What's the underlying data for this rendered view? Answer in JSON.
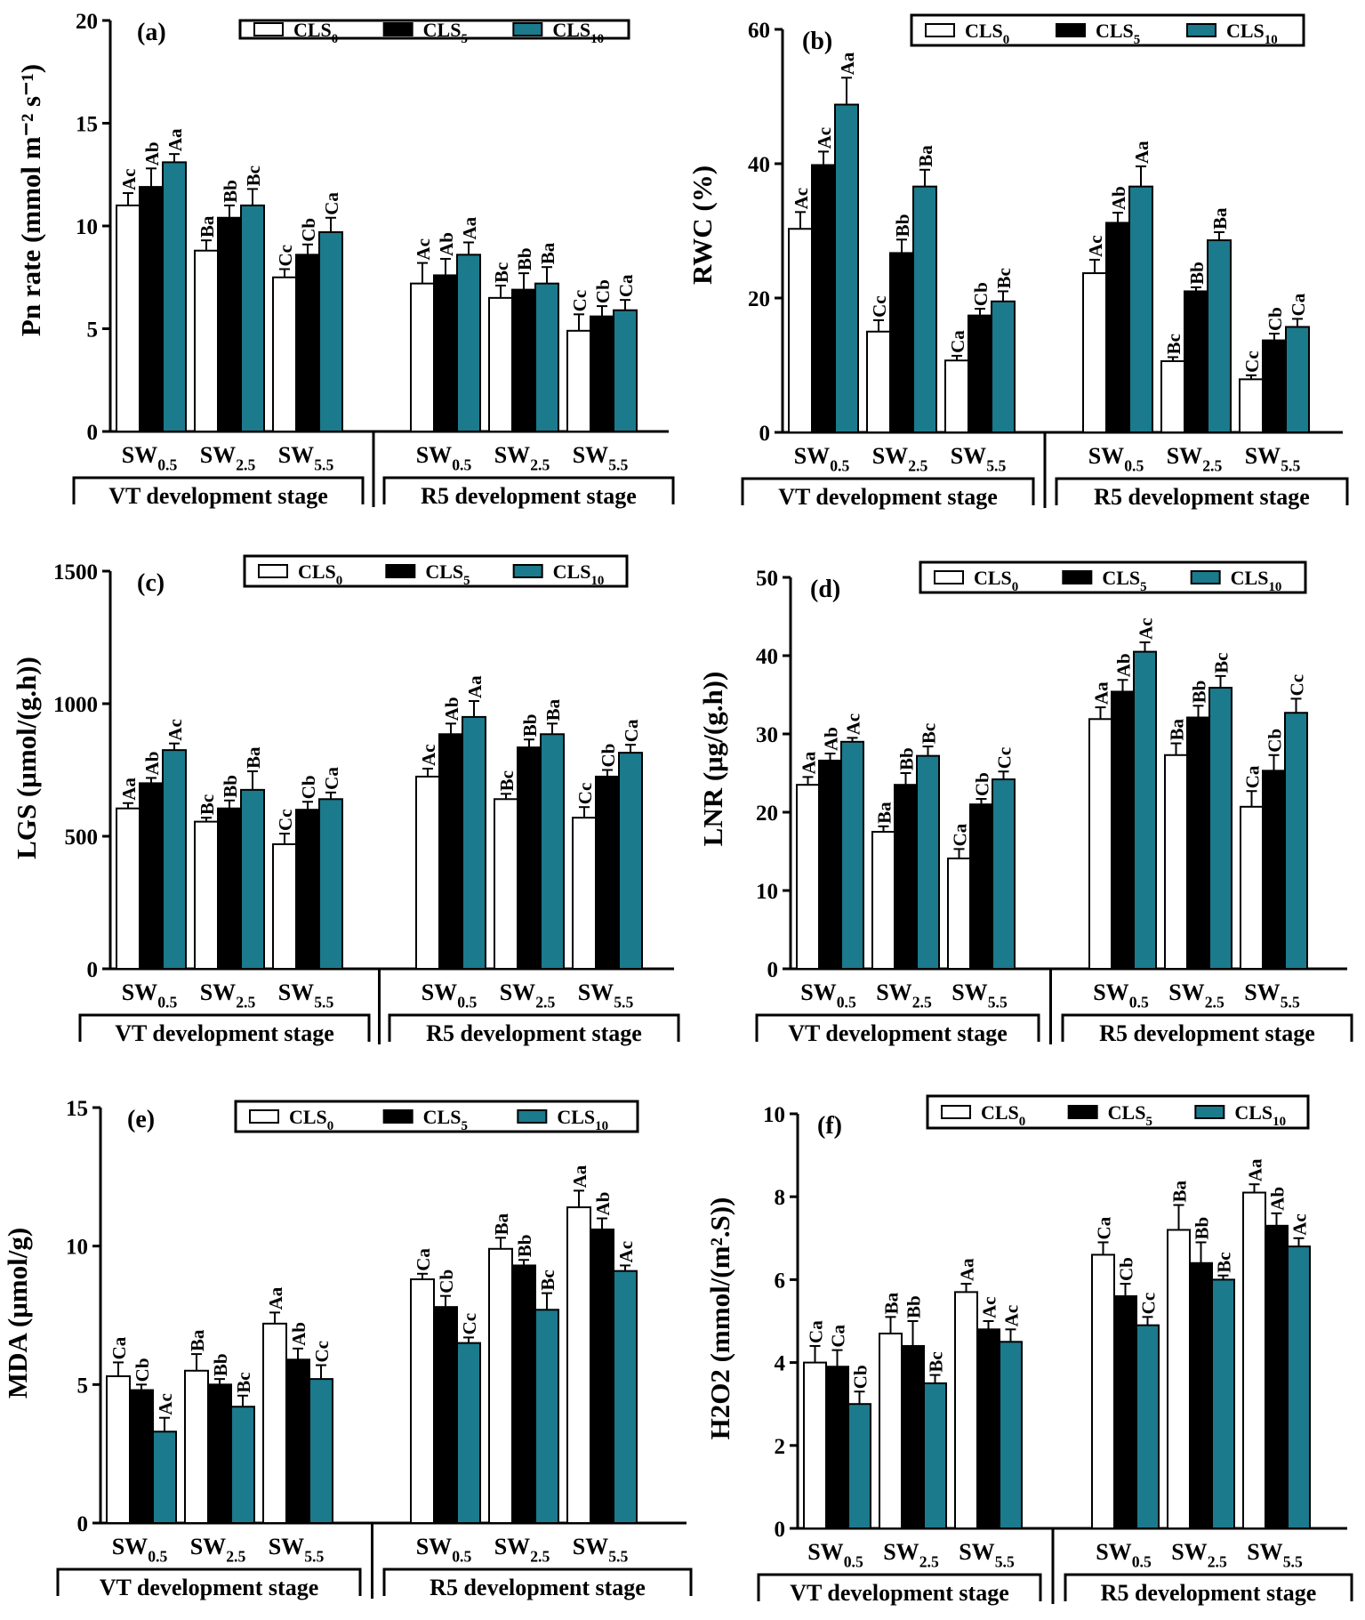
{
  "colors": {
    "cls0": "#ffffff",
    "cls5": "#000000",
    "cls10": "#1b7a8c",
    "stroke": "#000000"
  },
  "chart_data": [
    {
      "type": "bar",
      "panel": "(a)",
      "ylabel": "Pn rate (mmol m⁻² s⁻¹)",
      "ylim": [
        0,
        20
      ],
      "yticks": [
        0,
        5,
        10,
        15,
        20
      ],
      "legend": [
        "CLS0",
        "CLS5",
        "CLS10"
      ],
      "groups": [
        "VT development stage",
        "R5 development stage"
      ],
      "categories": [
        "SW0.5",
        "SW2.5",
        "SW5.5",
        "SW0.5",
        "SW2.5",
        "SW5.5"
      ],
      "series": [
        {
          "name": "CLS0",
          "values": [
            11.0,
            8.8,
            7.5,
            7.2,
            6.5,
            4.9
          ],
          "errors": [
            0.6,
            0.5,
            0.4,
            1.0,
            0.6,
            0.8
          ],
          "labels": [
            "Ac",
            "Ba",
            "Cc",
            "Ac",
            "Bc",
            "Cc"
          ]
        },
        {
          "name": "CLS5",
          "values": [
            11.9,
            10.4,
            8.6,
            7.6,
            6.9,
            5.6
          ],
          "errors": [
            0.9,
            0.6,
            0.5,
            0.8,
            0.8,
            0.5
          ],
          "labels": [
            "Ab",
            "Bb",
            "Cb",
            "Ab",
            "Bb",
            "Cb"
          ]
        },
        {
          "name": "CLS10",
          "values": [
            13.1,
            11.0,
            9.7,
            8.6,
            7.2,
            5.9
          ],
          "errors": [
            0.4,
            0.8,
            0.7,
            0.6,
            0.8,
            0.5
          ],
          "labels": [
            "Aa",
            "Bc",
            "Ca",
            "Aa",
            "Ba",
            "Ca"
          ]
        }
      ]
    },
    {
      "type": "bar",
      "panel": "(b)",
      "ylabel": "RWC (%)",
      "ylim": [
        0,
        60
      ],
      "yticks": [
        0,
        20,
        40,
        60
      ],
      "legend": [
        "CLS0",
        "CLS5",
        "CLS10"
      ],
      "groups": [
        "VT development stage",
        "R5 development stage"
      ],
      "categories": [
        "SW0.5",
        "SW2.5",
        "SW5.5",
        "SW0.5",
        "SW2.5",
        "SW5.5"
      ],
      "series": [
        {
          "name": "CLS0",
          "values": [
            30.3,
            15.0,
            10.7,
            23.7,
            10.6,
            7.9
          ],
          "errors": [
            2.5,
            1.7,
            0.7,
            2.0,
            0.6,
            0.6
          ],
          "labels": [
            "Ac",
            "Cc",
            "Ca",
            "Ac",
            "Bc",
            "Cc"
          ]
        },
        {
          "name": "CLS5",
          "values": [
            39.8,
            26.7,
            17.4,
            31.2,
            21.0,
            13.7
          ],
          "errors": [
            2.0,
            2.0,
            1.0,
            1.5,
            0.6,
            1.0
          ],
          "labels": [
            "Ac",
            "Bb",
            "Cb",
            "Ab",
            "Bb",
            "Cb"
          ]
        },
        {
          "name": "CLS10",
          "values": [
            48.8,
            36.6,
            19.5,
            36.6,
            28.6,
            15.7
          ],
          "errors": [
            4.0,
            2.5,
            1.5,
            3.0,
            1.2,
            1.2
          ],
          "labels": [
            "Aa",
            "Ba",
            "Bc",
            "Aa",
            "Ba",
            "Ca"
          ]
        }
      ]
    },
    {
      "type": "bar",
      "panel": "(c)",
      "ylabel": "LGS (μmol/(g.h))",
      "ylim": [
        0,
        1500
      ],
      "yticks": [
        0,
        500,
        1000,
        1500
      ],
      "legend": [
        "CLS0",
        "CLS5",
        "CLS10"
      ],
      "groups": [
        "VT development stage",
        "R5 development stage"
      ],
      "categories": [
        "SW0.5",
        "SW2.5",
        "SW5.5",
        "SW0.5",
        "SW2.5",
        "SW5.5"
      ],
      "series": [
        {
          "name": "CLS0",
          "values": [
            605,
            555,
            470,
            725,
            640,
            570
          ],
          "errors": [
            20,
            15,
            40,
            30,
            20,
            40
          ],
          "labels": [
            "Aa",
            "Bc",
            "Cc",
            "Ac",
            "Bc",
            "Cc"
          ]
        },
        {
          "name": "CLS5",
          "values": [
            700,
            605,
            600,
            885,
            835,
            725
          ],
          "errors": [
            20,
            30,
            30,
            40,
            30,
            25
          ],
          "labels": [
            "Ab",
            "Bb",
            "Cb",
            "Ab",
            "Bb",
            "Cb"
          ]
        },
        {
          "name": "CLS10",
          "values": [
            825,
            675,
            640,
            950,
            885,
            815
          ],
          "errors": [
            25,
            70,
            25,
            60,
            40,
            30
          ],
          "labels": [
            "Ac",
            "Ba",
            "Ca",
            "Aa",
            "Ba",
            "Ca"
          ]
        }
      ]
    },
    {
      "type": "bar",
      "panel": "(d)",
      "ylabel": "LNR (μg/(g.h))",
      "ylim": [
        0,
        50
      ],
      "yticks": [
        0,
        10,
        20,
        30,
        40,
        50
      ],
      "legend": [
        "CLS0",
        "CLS5",
        "CLS10"
      ],
      "groups": [
        "VT development stage",
        "R5 development stage"
      ],
      "categories": [
        "SW0.5",
        "SW2.5",
        "SW5.5",
        "SW0.5",
        "SW2.5",
        "SW5.5"
      ],
      "series": [
        {
          "name": "CLS0",
          "values": [
            23.5,
            17.5,
            14.1,
            31.9,
            27.3,
            20.7
          ],
          "errors": [
            1.0,
            0.7,
            1.2,
            1.5,
            1.5,
            2.0
          ],
          "labels": [
            "Aa",
            "Ba",
            "Ca",
            "Aa",
            "Ba",
            "Ca"
          ]
        },
        {
          "name": "CLS5",
          "values": [
            26.6,
            23.5,
            21.0,
            35.4,
            32.1,
            25.3
          ],
          "errors": [
            0.9,
            1.5,
            0.7,
            1.5,
            1.5,
            2.0
          ],
          "labels": [
            "Ab",
            "Bb",
            "Cb",
            "Ab",
            "Bb",
            "Cb"
          ]
        },
        {
          "name": "CLS10",
          "values": [
            29.0,
            27.2,
            24.2,
            40.5,
            35.9,
            32.7
          ],
          "errors": [
            0.5,
            1.2,
            1.0,
            1.2,
            1.5,
            1.8
          ],
          "labels": [
            "Ac",
            "Bc",
            "Cc",
            "Ac",
            "Bc",
            "Cc"
          ]
        }
      ]
    },
    {
      "type": "bar",
      "panel": "(e)",
      "ylabel": "MDA (μmol/g)",
      "ylim": [
        0,
        15
      ],
      "yticks": [
        0,
        5,
        10,
        15
      ],
      "legend": [
        "CLS0",
        "CLS5",
        "CLS10"
      ],
      "groups": [
        "VT development stage",
        "R5 development stage"
      ],
      "categories": [
        "SW0.5",
        "SW2.5",
        "SW5.5",
        "SW0.5",
        "SW2.5",
        "SW5.5"
      ],
      "series": [
        {
          "name": "CLS0",
          "values": [
            5.3,
            5.5,
            7.2,
            8.8,
            9.9,
            11.4
          ],
          "errors": [
            0.5,
            0.6,
            0.4,
            0.2,
            0.4,
            0.6
          ],
          "labels": [
            "Ca",
            "Ba",
            "Aa",
            "Ca",
            "Ba",
            "Aa"
          ]
        },
        {
          "name": "CLS5",
          "values": [
            4.8,
            5.0,
            5.9,
            7.8,
            9.3,
            10.6
          ],
          "errors": [
            0.2,
            0.2,
            0.4,
            0.4,
            0.2,
            0.4
          ],
          "labels": [
            "Cb",
            "Bb",
            "Ab",
            "Cb",
            "Bb",
            "Ab"
          ]
        },
        {
          "name": "CLS10",
          "values": [
            3.3,
            4.2,
            5.2,
            6.5,
            7.7,
            9.1
          ],
          "errors": [
            0.5,
            0.4,
            0.5,
            0.2,
            0.6,
            0.2
          ],
          "labels": [
            "Ac",
            "Bc",
            "Cc",
            "Cc",
            "Bc",
            "Ac"
          ]
        }
      ]
    },
    {
      "type": "bar",
      "panel": "(f)",
      "ylabel": "H2O2 (mmol/(m².S))",
      "ylim": [
        0,
        10
      ],
      "yticks": [
        0,
        2,
        4,
        6,
        8,
        10
      ],
      "legend": [
        "CLS0",
        "CLS5",
        "CLS10"
      ],
      "groups": [
        "VT development stage",
        "R5 development stage"
      ],
      "categories": [
        "SW0.5",
        "SW2.5",
        "SW5.5",
        "SW0.5",
        "SW2.5",
        "SW5.5"
      ],
      "series": [
        {
          "name": "CLS0",
          "values": [
            4.0,
            4.7,
            5.7,
            6.6,
            7.2,
            8.1
          ],
          "errors": [
            0.4,
            0.4,
            0.2,
            0.3,
            0.6,
            0.2
          ],
          "labels": [
            "Ca",
            "Ba",
            "Aa",
            "Ca",
            "Ba",
            "Aa"
          ]
        },
        {
          "name": "CLS5",
          "values": [
            3.9,
            4.4,
            4.8,
            5.6,
            6.4,
            7.3
          ],
          "errors": [
            0.4,
            0.6,
            0.2,
            0.3,
            0.5,
            0.3
          ],
          "labels": [
            "Ca",
            "Bb",
            "Ac",
            "Cb",
            "Bb",
            "Ab"
          ]
        },
        {
          "name": "CLS10",
          "values": [
            3.0,
            3.5,
            4.5,
            4.9,
            6.0,
            6.8
          ],
          "errors": [
            0.3,
            0.2,
            0.3,
            0.2,
            0.1,
            0.2
          ],
          "labels": [
            "Cb",
            "Bc",
            "Ac",
            "Cc",
            "Bc",
            "Ac"
          ]
        }
      ]
    }
  ]
}
